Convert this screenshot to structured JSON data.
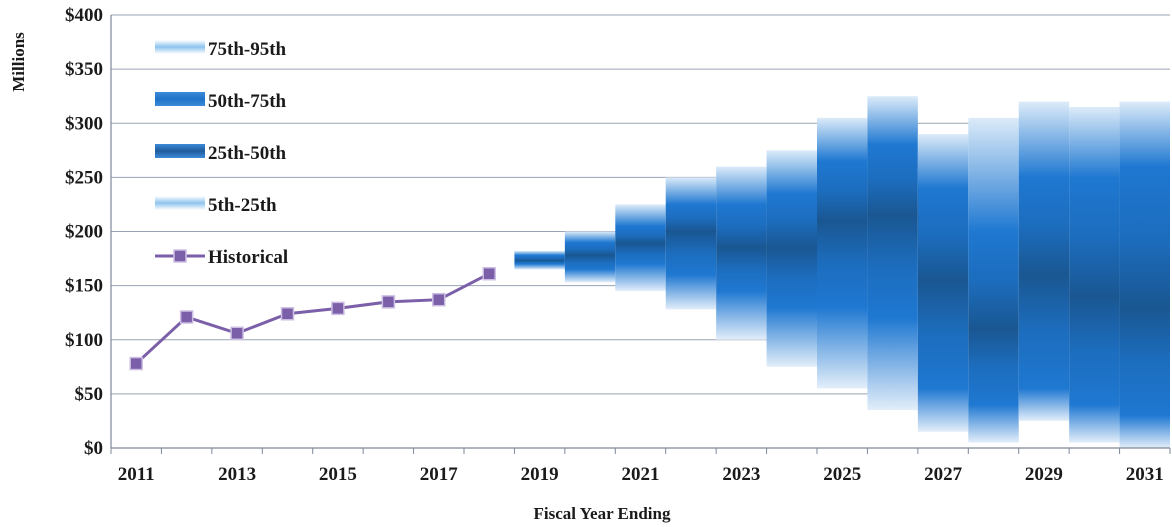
{
  "chart_data": {
    "type": "area",
    "xlabel": "Fiscal Year Ending",
    "ylabel": "Millions",
    "ylim": [
      0,
      400
    ],
    "y_ticks": [
      "$0",
      "$50",
      "$100",
      "$150",
      "$200",
      "$250",
      "$300",
      "$350",
      "$400"
    ],
    "x_tick_labels": [
      "2011",
      "2013",
      "2015",
      "2017",
      "2019",
      "2021",
      "2023",
      "2025",
      "2027",
      "2029",
      "2031"
    ],
    "grid": true,
    "legend_position": "top-left",
    "legend": [
      {
        "label": "75th-95th",
        "color": "#8ec4ee"
      },
      {
        "label": "50th-75th",
        "color": "#1f73c9"
      },
      {
        "label": "25th-50th",
        "color": "#1d5c9c"
      },
      {
        "label": "5th-25th",
        "color": "#8ec4ee"
      },
      {
        "label": "Historical",
        "color": "#7b5fa8"
      }
    ],
    "historical": {
      "name": "Historical",
      "x": [
        2011,
        2012,
        2013,
        2014,
        2015,
        2016,
        2017,
        2018
      ],
      "values": [
        78,
        121,
        106,
        124,
        129,
        135,
        137,
        161
      ]
    },
    "forecast": {
      "x": [
        2019,
        2020,
        2021,
        2022,
        2023,
        2024,
        2025,
        2026,
        2027,
        2028,
        2029,
        2030,
        2031
      ],
      "p5": [
        165,
        153,
        145,
        128,
        100,
        75,
        55,
        35,
        15,
        5,
        25,
        5,
        0
      ],
      "p25": [
        170,
        165,
        170,
        160,
        145,
        130,
        130,
        120,
        55,
        40,
        55,
        40,
        30
      ],
      "p50": [
        173,
        178,
        189,
        200,
        185,
        185,
        210,
        215,
        155,
        110,
        160,
        140,
        130
      ],
      "p75": [
        178,
        190,
        205,
        225,
        225,
        235,
        265,
        280,
        240,
        200,
        250,
        250,
        260
      ],
      "p95": [
        182,
        200,
        225,
        250,
        260,
        275,
        305,
        325,
        290,
        305,
        320,
        315,
        320
      ]
    }
  }
}
